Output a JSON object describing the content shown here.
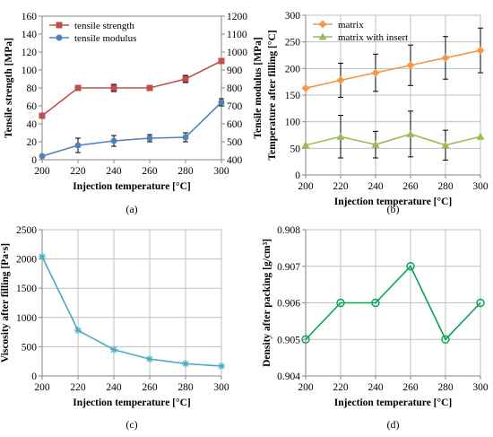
{
  "chart_data": [
    {
      "id": "a",
      "type": "line",
      "panel_label": "(a)",
      "xlabel": "Injection temperature [°C]",
      "ylabel": "Tensile strength [MPa]",
      "y2label": "Tensile modulus [MPa]",
      "x": [
        200,
        220,
        240,
        260,
        280,
        300
      ],
      "xlim": [
        200,
        300
      ],
      "xticks": [
        200,
        220,
        240,
        260,
        280,
        300
      ],
      "ylim": [
        0,
        160
      ],
      "yticks": [
        0,
        20,
        40,
        60,
        80,
        100,
        120,
        140,
        160
      ],
      "y2lim": [
        400,
        1200
      ],
      "y2ticks": [
        400,
        500,
        600,
        700,
        800,
        900,
        1000,
        1100,
        1200
      ],
      "grid": false,
      "legend_position": "top-left",
      "series": [
        {
          "name": "tensile strength",
          "axis": "left",
          "values": [
            49,
            80,
            80,
            80,
            90,
            110
          ],
          "errors": [
            0,
            2,
            4,
            3,
            4,
            3
          ],
          "color": "#c0504d",
          "marker": "square"
        },
        {
          "name": "tensile modulus",
          "axis": "right",
          "values": [
            420,
            480,
            505,
            520,
            525,
            720
          ],
          "errors": [
            0,
            40,
            30,
            20,
            25,
            20
          ],
          "color": "#4f81bd",
          "marker": "circle"
        }
      ]
    },
    {
      "id": "b",
      "type": "line",
      "panel_label": "(b)",
      "xlabel": "Injection temperature [°C]",
      "ylabel": "Temperature after filling [°C]",
      "x": [
        200,
        220,
        240,
        260,
        280,
        300
      ],
      "xlim": [
        200,
        300
      ],
      "xticks": [
        200,
        220,
        240,
        260,
        280,
        300
      ],
      "ylim": [
        0,
        300
      ],
      "yticks": [
        0,
        50,
        100,
        150,
        200,
        250,
        300
      ],
      "grid": true,
      "legend_position": "top-left",
      "series": [
        {
          "name": "matrix",
          "values": [
            163,
            178,
            192,
            206,
            220,
            234
          ],
          "errors": [
            0,
            32,
            35,
            38,
            40,
            42
          ],
          "color": "#f79646",
          "marker": "diamond"
        },
        {
          "name": "matrix with insert",
          "values": [
            56,
            72,
            57,
            77,
            56,
            72
          ],
          "errors": [
            0,
            40,
            25,
            43,
            28,
            0
          ],
          "color": "#9bbb59",
          "marker": "triangle"
        }
      ]
    },
    {
      "id": "c",
      "type": "line",
      "panel_label": "(c)",
      "xlabel": "Injection temperature [°C]",
      "ylabel": "Viscosity after filling [Pa·s]",
      "x": [
        200,
        220,
        240,
        260,
        280,
        300
      ],
      "xlim": [
        200,
        300
      ],
      "xticks": [
        200,
        220,
        240,
        260,
        280,
        300
      ],
      "ylim": [
        0,
        2500
      ],
      "yticks": [
        0,
        500,
        1000,
        1500,
        2000,
        2500
      ],
      "grid": true,
      "series": [
        {
          "values": [
            2040,
            780,
            450,
            290,
            210,
            170
          ],
          "color": "#4bacc6",
          "marker": "star"
        }
      ]
    },
    {
      "id": "d",
      "type": "line",
      "panel_label": "(d)",
      "xlabel": "Injection temperature [°C]",
      "ylabel": "Density after packing [g/cm³]",
      "x": [
        200,
        220,
        240,
        260,
        280,
        300
      ],
      "xlim": [
        200,
        300
      ],
      "xticks": [
        200,
        220,
        240,
        260,
        280,
        300
      ],
      "ylim": [
        0.904,
        0.908
      ],
      "yticks": [
        0.904,
        0.905,
        0.906,
        0.907,
        0.908
      ],
      "ytick_decimals": 3,
      "grid": true,
      "series": [
        {
          "values": [
            0.905,
            0.906,
            0.906,
            0.907,
            0.905,
            0.906
          ],
          "color": "#00a651",
          "marker": "open-circle"
        }
      ]
    }
  ]
}
